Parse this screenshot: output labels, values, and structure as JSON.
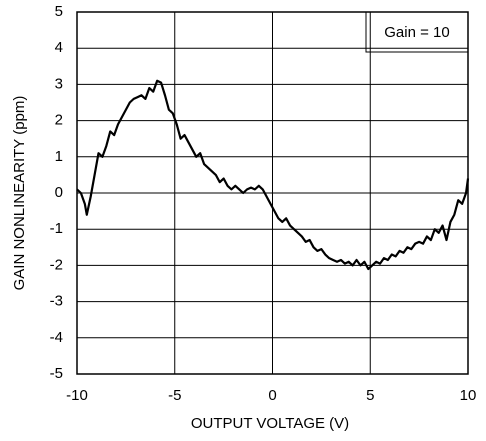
{
  "chart_data": {
    "type": "line",
    "xlabel": "OUTPUT VOLTAGE (V)",
    "ylabel": "GAIN NONLINEARITY (ppm)",
    "annotation": "Gain = 10",
    "xlim": [
      -10,
      10
    ],
    "xticks": [
      -10,
      -5,
      0,
      5,
      10
    ],
    "ylim": [
      -5,
      5
    ],
    "yticks": [
      -5,
      -4,
      -3,
      -2,
      -1,
      0,
      1,
      2,
      3,
      4,
      5
    ],
    "grid": true,
    "x": [
      -10,
      -9.8,
      -9.6,
      -9.5,
      -9.3,
      -9.1,
      -8.9,
      -8.7,
      -8.5,
      -8.3,
      -8.1,
      -7.9,
      -7.7,
      -7.5,
      -7.3,
      -7.1,
      -6.9,
      -6.7,
      -6.5,
      -6.3,
      -6.1,
      -5.9,
      -5.7,
      -5.5,
      -5.3,
      -5.1,
      -4.9,
      -4.7,
      -4.5,
      -4.3,
      -4.1,
      -3.9,
      -3.7,
      -3.5,
      -3.3,
      -3.1,
      -2.9,
      -2.7,
      -2.5,
      -2.3,
      -2.1,
      -1.9,
      -1.7,
      -1.5,
      -1.3,
      -1.1,
      -0.9,
      -0.7,
      -0.5,
      -0.3,
      -0.1,
      0.1,
      0.3,
      0.5,
      0.7,
      0.9,
      1.1,
      1.3,
      1.5,
      1.7,
      1.9,
      2.1,
      2.3,
      2.5,
      2.7,
      2.9,
      3.1,
      3.3,
      3.5,
      3.7,
      3.9,
      4.1,
      4.3,
      4.5,
      4.7,
      4.9,
      5.1,
      5.3,
      5.5,
      5.7,
      5.9,
      6.1,
      6.3,
      6.5,
      6.7,
      6.9,
      7.1,
      7.3,
      7.5,
      7.7,
      7.9,
      8.1,
      8.3,
      8.5,
      8.7,
      8.9,
      9.1,
      9.3,
      9.5,
      9.7,
      9.9,
      10
    ],
    "series": [
      {
        "color": "#000000",
        "values": [
          0.1,
          0,
          -0.3,
          -0.6,
          -0.1,
          0.5,
          1.1,
          1.0,
          1.3,
          1.7,
          1.6,
          1.9,
          2.1,
          2.3,
          2.5,
          2.6,
          2.65,
          2.7,
          2.6,
          2.9,
          2.8,
          3.1,
          3.05,
          2.7,
          2.3,
          2.2,
          1.9,
          1.5,
          1.6,
          1.4,
          1.2,
          1.0,
          1.1,
          0.8,
          0.7,
          0.6,
          0.5,
          0.3,
          0.4,
          0.2,
          0.1,
          0.2,
          0.1,
          0.0,
          0.1,
          0.15,
          0.1,
          0.2,
          0.1,
          -0.1,
          -0.3,
          -0.5,
          -0.7,
          -0.8,
          -0.7,
          -0.9,
          -1.0,
          -1.1,
          -1.2,
          -1.35,
          -1.3,
          -1.5,
          -1.6,
          -1.55,
          -1.7,
          -1.8,
          -1.85,
          -1.9,
          -1.85,
          -1.95,
          -1.9,
          -2.0,
          -1.85,
          -2.0,
          -1.9,
          -2.1,
          -2.0,
          -1.9,
          -1.95,
          -1.8,
          -1.85,
          -1.7,
          -1.75,
          -1.6,
          -1.65,
          -1.5,
          -1.55,
          -1.4,
          -1.35,
          -1.4,
          -1.2,
          -1.3,
          -1.0,
          -1.1,
          -0.9,
          -1.3,
          -0.8,
          -0.6,
          -0.2,
          -0.3,
          0.0,
          0.4
        ]
      }
    ]
  }
}
